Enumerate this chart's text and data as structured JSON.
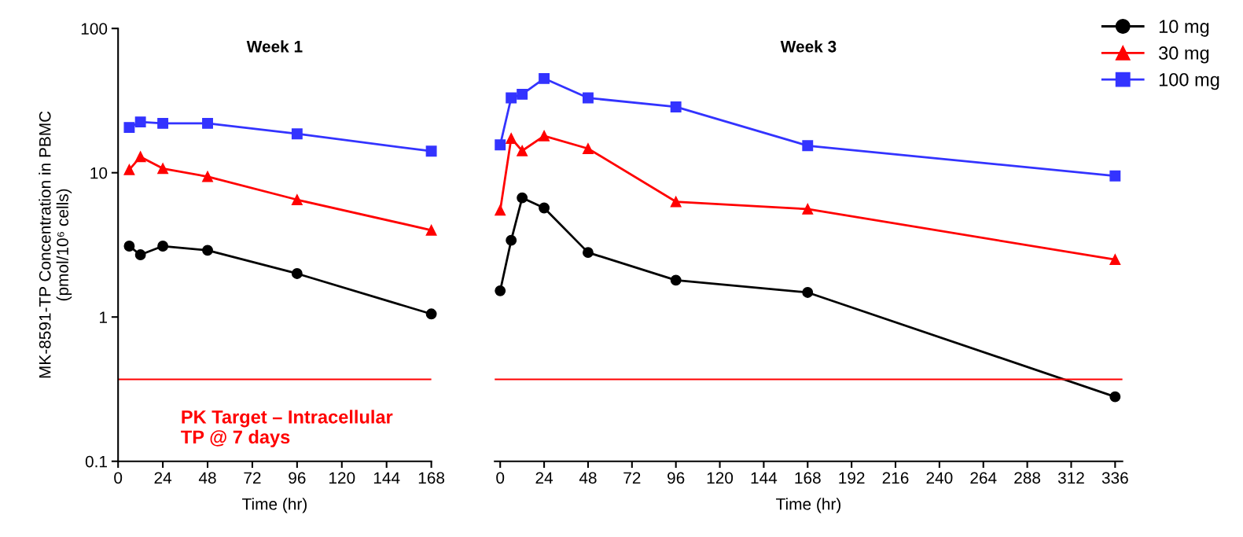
{
  "chart_data": [
    {
      "type": "line",
      "title": "Week 1",
      "xlabel": "Time (hr)",
      "ylabel": "MK-8591-TP Concentration in PBMC\n(pmol/10⁶ cells)",
      "log": "y",
      "xlim": [
        0,
        168
      ],
      "xticks": [
        0,
        24,
        48,
        72,
        96,
        120,
        144,
        168
      ],
      "ylim": [
        0.1,
        100
      ],
      "yticks": [
        0.1,
        1,
        10,
        100
      ],
      "grid": false,
      "legend": false,
      "x": [
        6,
        12,
        24,
        48,
        96,
        168
      ],
      "series": [
        {
          "color": "#000000",
          "marker": "circle",
          "values": [
            3.1,
            2.7,
            3.1,
            2.9,
            2.0,
            1.05
          ]
        },
        {
          "color": "#ff0000",
          "marker": "triangle",
          "values": [
            10.5,
            12.9,
            10.7,
            9.4,
            6.5,
            4.0
          ]
        },
        {
          "color": "#3333ff",
          "marker": "square",
          "values": [
            20.6,
            22.5,
            22,
            22,
            18.6,
            14.1
          ]
        }
      ],
      "ref_lines": [
        {
          "axis": "y",
          "value": 0.37,
          "color": "#ff0000",
          "label": "PK Target – Intracellular\nTP @ 7 days"
        }
      ]
    },
    {
      "type": "line",
      "title": "Week 3",
      "xlabel": "Time (hr)",
      "log": "y",
      "xlim": [
        -3,
        340
      ],
      "xticks": [
        0,
        24,
        48,
        72,
        96,
        120,
        144,
        168,
        192,
        216,
        240,
        264,
        288,
        312,
        336
      ],
      "ylim": [
        0.1,
        100
      ],
      "tick_labels": "x",
      "grid": false,
      "legend": "top right",
      "x": [
        0,
        6,
        12,
        24,
        48,
        96,
        168,
        336
      ],
      "series": [
        {
          "name": "10 mg",
          "color": "#000000",
          "marker": "circle",
          "values": [
            1.52,
            3.4,
            6.7,
            5.7,
            2.8,
            1.8,
            1.48,
            0.28
          ]
        },
        {
          "name": "30 mg",
          "color": "#ff0000",
          "marker": "triangle",
          "values": [
            5.5,
            17.3,
            14.2,
            18,
            14.7,
            6.3,
            5.6,
            2.5
          ]
        },
        {
          "name": "100 mg",
          "color": "#3333ff",
          "marker": "square",
          "values": [
            15.6,
            33,
            35,
            45,
            33,
            28.6,
            15.4,
            9.5
          ]
        }
      ],
      "ref_lines": [
        {
          "axis": "y",
          "value": 0.37,
          "color": "#ff0000"
        }
      ]
    }
  ]
}
